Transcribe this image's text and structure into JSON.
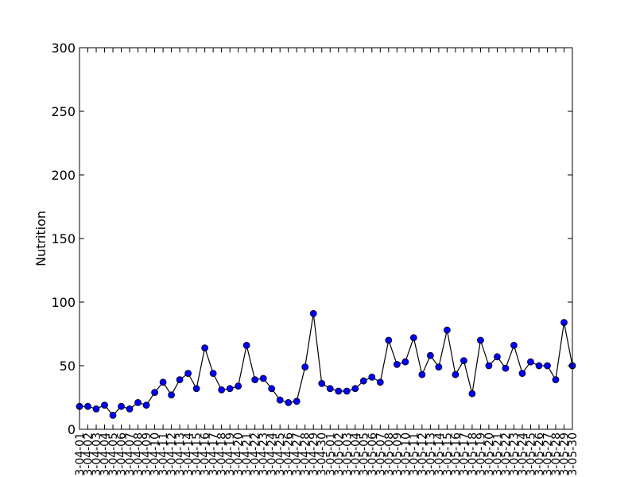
{
  "chart_data": {
    "type": "line",
    "ylabel": "Nutrition",
    "xlabel": "",
    "title": "",
    "ylim": [
      0,
      300
    ],
    "yticks": [
      0,
      50,
      100,
      150,
      200,
      250,
      300
    ],
    "grid": false,
    "line_color": "#000000",
    "marker_color": "#0000ff",
    "x": [
      "3-04-01",
      "3-04-02",
      "3-04-03",
      "3-04-04",
      "3-04-05",
      "3-04-06",
      "3-04-07",
      "3-04-08",
      "3-04-09",
      "3-04-10",
      "3-04-11",
      "3-04-12",
      "3-04-13",
      "3-04-14",
      "3-04-15",
      "3-04-16",
      "3-04-17",
      "3-04-18",
      "3-04-19",
      "3-04-20",
      "3-04-21",
      "3-04-22",
      "3-04-23",
      "3-04-24",
      "3-04-25",
      "3-04-26",
      "3-04-27",
      "3-04-28",
      "3-04-29",
      "3-04-30",
      "3-05-01",
      "3-05-02",
      "3-05-03",
      "3-05-04",
      "3-05-05",
      "3-05-06",
      "3-05-07",
      "3-05-08",
      "3-05-09",
      "3-05-10",
      "3-05-11",
      "3-05-12",
      "3-05-13",
      "3-05-14",
      "3-05-15",
      "3-05-16",
      "3-05-17",
      "3-05-18",
      "3-05-19",
      "3-05-20",
      "3-05-21",
      "3-05-22",
      "3-05-23",
      "3-05-24",
      "3-05-25",
      "3-05-26",
      "3-05-27",
      "3-05-28",
      "3-05-29",
      "3-05-30"
    ],
    "series": [
      {
        "values": [
          18,
          18,
          16,
          19,
          11,
          18,
          16,
          21,
          19,
          29,
          37,
          27,
          39,
          44,
          32,
          64,
          44,
          31,
          32,
          34,
          66,
          39,
          40,
          32,
          23,
          21,
          22,
          49,
          91,
          36,
          32,
          30,
          30,
          32,
          38,
          41,
          37,
          70,
          51,
          53,
          72,
          43,
          58,
          49,
          78,
          43,
          54,
          28,
          70,
          50,
          57,
          48,
          66,
          44,
          53,
          50,
          50,
          39,
          84,
          50
        ]
      }
    ]
  }
}
